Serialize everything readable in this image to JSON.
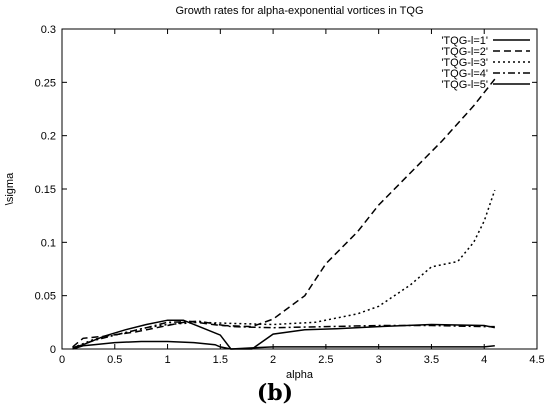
{
  "chart_data": {
    "type": "line",
    "title": "Growth rates for alpha-exponential vortices in TQG",
    "xlabel": "alpha",
    "ylabel": "\\sigma",
    "xlim": [
      0,
      4.5
    ],
    "ylim": [
      0,
      0.3
    ],
    "xticks": [
      "0",
      "0.5",
      "1",
      "1.5",
      "2",
      "2.5",
      "3",
      "3.5",
      "4",
      "4.5"
    ],
    "yticks": [
      "0",
      "0.05",
      "0.1",
      "0.15",
      "0.2",
      "0.25",
      "0.3"
    ],
    "legend_position": "top-right",
    "grid": false,
    "series": [
      {
        "name": "'TQG-l=1'",
        "dash": "solid",
        "x": [
          0.1,
          0.2,
          0.3,
          0.5,
          0.75,
          1.0,
          1.25,
          1.45,
          1.5,
          1.6,
          1.8,
          2.0,
          2.5,
          3.0,
          3.5,
          4.0,
          4.1
        ],
        "y": [
          0.0,
          0.003,
          0.004,
          0.006,
          0.007,
          0.007,
          0.006,
          0.004,
          0.002,
          0.0,
          0.001,
          0.002,
          0.002,
          0.002,
          0.002,
          0.002,
          0.003
        ]
      },
      {
        "name": "'TQG-l=2'",
        "dash": "dashed",
        "x": [
          0.1,
          0.2,
          0.4,
          0.7,
          1.0,
          1.2,
          1.5,
          1.8,
          2.0,
          2.3,
          2.5,
          2.8,
          3.0,
          3.3,
          3.6,
          3.9,
          4.1
        ],
        "y": [
          0.002,
          0.01,
          0.012,
          0.016,
          0.022,
          0.026,
          0.022,
          0.021,
          0.028,
          0.05,
          0.08,
          0.11,
          0.135,
          0.165,
          0.195,
          0.228,
          0.253
        ]
      },
      {
        "name": "'TQG-l=3'",
        "dash": "dotted",
        "x": [
          0.1,
          0.3,
          0.5,
          0.8,
          1.0,
          1.3,
          1.6,
          2.0,
          2.4,
          2.8,
          3.0,
          3.3,
          3.5,
          3.75,
          3.9,
          4.0,
          4.1
        ],
        "y": [
          0.001,
          0.009,
          0.013,
          0.02,
          0.023,
          0.025,
          0.024,
          0.023,
          0.025,
          0.033,
          0.04,
          0.06,
          0.077,
          0.082,
          0.1,
          0.12,
          0.149
        ]
      },
      {
        "name": "'TQG-l=4'",
        "dash": "dashdot",
        "x": [
          0.1,
          0.3,
          0.5,
          0.8,
          1.0,
          1.3,
          1.6,
          2.0,
          2.5,
          3.0,
          3.5,
          4.0,
          4.1
        ],
        "y": [
          0.001,
          0.008,
          0.013,
          0.02,
          0.025,
          0.026,
          0.021,
          0.02,
          0.021,
          0.022,
          0.022,
          0.021,
          0.021
        ]
      },
      {
        "name": "'TQG-l=5'",
        "dash": "solid",
        "x": [
          0.1,
          0.2,
          0.4,
          0.6,
          0.8,
          1.0,
          1.15,
          1.3,
          1.5,
          1.6,
          1.8,
          2.0,
          2.3,
          2.6,
          3.0,
          3.5,
          4.0,
          4.1
        ],
        "y": [
          0.001,
          0.004,
          0.012,
          0.018,
          0.023,
          0.027,
          0.027,
          0.021,
          0.013,
          0.0,
          0.0,
          0.014,
          0.018,
          0.019,
          0.021,
          0.023,
          0.022,
          0.02
        ]
      }
    ]
  },
  "panel_label": "(b)"
}
